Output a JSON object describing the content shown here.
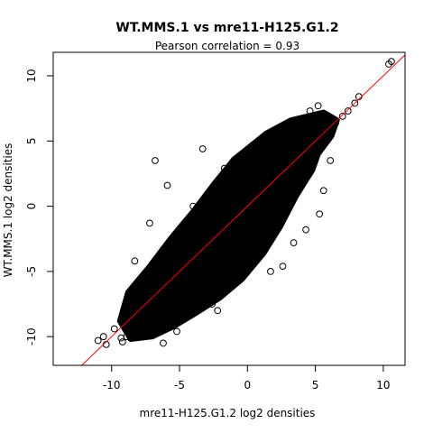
{
  "chart_data": {
    "type": "scatter",
    "title": "WT.MMS.1 vs mre11-H125.G1.2",
    "subtitle": "Pearson correlation =  0.93",
    "xlabel": "mre11-H125.G1.2 log2 densities",
    "ylabel": "WT.MMS.1 log2 densities",
    "xlim": [
      -14.3,
      11.6
    ],
    "ylim": [
      -12.2,
      11.8
    ],
    "xticks": [
      -10,
      -5,
      0,
      5,
      10
    ],
    "yticks": [
      -10,
      -5,
      0,
      5,
      10
    ],
    "xtick_labels": [
      "-10",
      "-5",
      "0",
      "5",
      "10"
    ],
    "ytick_labels": [
      "-10",
      "-5",
      "0",
      "5",
      "10"
    ],
    "point_style": "open circle",
    "point_color": "#000000",
    "fit_line": {
      "slope": 1.0,
      "intercept": 0.0,
      "color": "#ff0000"
    },
    "points": {
      "x": [
        -11.0,
        -10.4,
        -10.6,
        -9.8,
        -9.2,
        -8.7,
        -8.9,
        -8.2,
        -7.7,
        -7.6,
        -7.9,
        -7.3,
        -6.8,
        -6.6,
        -6.9,
        -6.1,
        -5.7,
        -5.3,
        -5.6,
        -4.9,
        -4.4,
        -4.2,
        -3.7,
        -3.3,
        -2.9,
        -2.7,
        -2.2,
        -1.8,
        -1.3,
        -0.9,
        -0.3,
        0.2,
        0.6,
        1.2,
        1.6,
        2.1,
        2.6,
        3.0,
        3.5,
        4.1,
        4.6,
        5.1,
        5.6,
        6.0,
        6.5,
        7.0,
        7.4,
        7.9,
        8.2,
        10.4,
        10.6,
        -9.3,
        -8.6,
        -7.5,
        -6.2,
        -5.2,
        -8.4,
        -7.9,
        -8.3,
        -7.0,
        -6.4,
        -5.0,
        -4.6,
        -3.8,
        -4.0,
        -5.2,
        -2.9,
        -2.0,
        -1.3,
        -0.2,
        0.6,
        1.6,
        2.6,
        3.1,
        3.6,
        4.1,
        4.6,
        5.2,
        1.3,
        3.4,
        4.3,
        5.3,
        -0.2,
        -1.5,
        -3.6,
        -2.6,
        -2.2,
        1.7,
        2.6,
        5.6,
        6.1,
        2.2,
        3.0,
        1.0,
        -1.7,
        -5.9,
        -6.8,
        -7.2,
        -8.8,
        -3.3
      ],
      "y": [
        -10.3,
        -10.6,
        -10.0,
        -9.4,
        -10.4,
        -9.1,
        -10.0,
        -9.4,
        -9.3,
        -8.6,
        -7.9,
        -8.3,
        -7.4,
        -6.5,
        -6.0,
        -6.4,
        -5.8,
        -5.6,
        -4.8,
        -4.6,
        -4.4,
        -3.9,
        -3.4,
        -3.1,
        -2.6,
        -2.3,
        -1.9,
        -1.6,
        -1.1,
        -0.8,
        -0.3,
        0.1,
        0.6,
        1.1,
        1.5,
        2.0,
        2.4,
        3.0,
        3.4,
        3.9,
        4.4,
        4.9,
        5.4,
        5.9,
        6.4,
        6.9,
        7.3,
        7.9,
        8.4,
        10.9,
        11.1,
        -10.1,
        -10.1,
        -9.9,
        -10.5,
        -9.6,
        -8.7,
        -6.6,
        -4.2,
        -5.3,
        -4.3,
        -3.2,
        -2.6,
        -1.5,
        0.0,
        -2.1,
        -1.1,
        0.2,
        1.1,
        2.0,
        3.2,
        3.9,
        4.6,
        5.3,
        6.0,
        6.6,
        7.3,
        7.7,
        -2.6,
        -2.8,
        -1.8,
        -0.6,
        -3.5,
        -4.6,
        -6.6,
        -7.5,
        -8.0,
        -5.0,
        -4.6,
        1.2,
        3.5,
        0.7,
        2.0,
        4.1,
        2.9,
        1.6,
        3.5,
        -1.3,
        -7.6,
        4.4
      ]
    }
  }
}
